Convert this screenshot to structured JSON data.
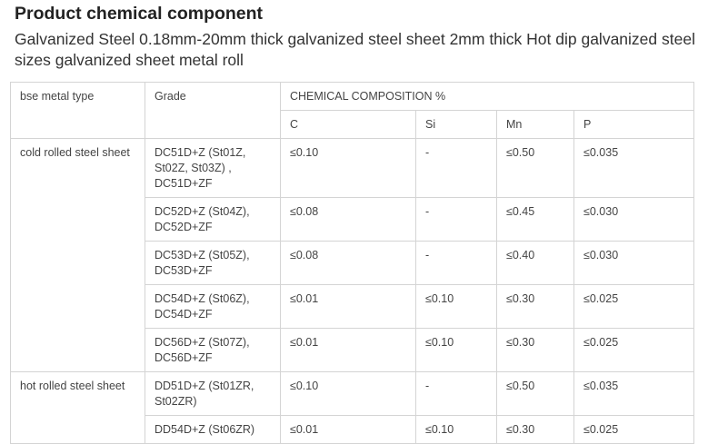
{
  "heading": "Product chemical component",
  "subtitle": "Galvanized Steel 0.18mm-20mm thick galvanized steel sheet 2mm thick Hot dip galvanized steel sizes galvanized sheet metal roll",
  "table": {
    "col_base": "bse metal type",
    "col_grade": "Grade",
    "col_chem": "CHEMICAL COMPOSITION %",
    "elements": [
      "C",
      "Si",
      "Mn",
      "P"
    ],
    "groups": [
      {
        "type": "cold rolled steel sheet",
        "rows": [
          {
            "grade": "DC51D+Z (St01Z, St02Z, St03Z) , DC51D+ZF",
            "c": "≤0.10",
            "si": "-",
            "mn": "≤0.50",
            "p": "≤0.035"
          },
          {
            "grade": "DC52D+Z (St04Z), DC52D+ZF",
            "c": "≤0.08",
            "si": "-",
            "mn": "≤0.45",
            "p": "≤0.030"
          },
          {
            "grade": "DC53D+Z (St05Z), DC53D+ZF",
            "c": "≤0.08",
            "si": "-",
            "mn": "≤0.40",
            "p": "≤0.030"
          },
          {
            "grade": "DC54D+Z (St06Z), DC54D+ZF",
            "c": "≤0.01",
            "si": "≤0.10",
            "mn": "≤0.30",
            "p": "≤0.025"
          },
          {
            "grade": "DC56D+Z (St07Z), DC56D+ZF",
            "c": "≤0.01",
            "si": "≤0.10",
            "mn": "≤0.30",
            "p": "≤0.025"
          }
        ]
      },
      {
        "type": "hot rolled steel sheet",
        "rows": [
          {
            "grade": "DD51D+Z (St01ZR, St02ZR)",
            "c": "≤0.10",
            "si": "-",
            "mn": "≤0.50",
            "p": "≤0.035"
          },
          {
            "grade": "DD54D+Z (St06ZR)",
            "c": "≤0.01",
            "si": "≤0.10",
            "mn": "≤0.30",
            "p": "≤0.025"
          }
        ]
      }
    ]
  }
}
